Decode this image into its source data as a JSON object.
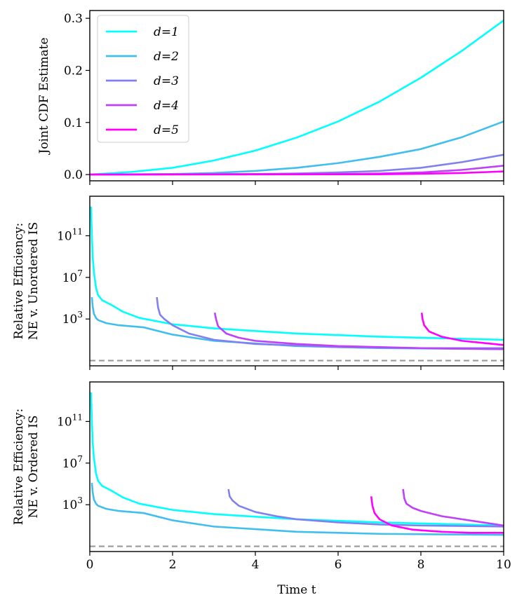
{
  "chart_data": {
    "type": "line",
    "shared_x": {
      "label": "Time t",
      "xlim": [
        0,
        10
      ],
      "ticks": [
        0,
        2,
        4,
        6,
        8,
        10
      ]
    },
    "series_colors": {
      "d=1": "#00ffff",
      "d=2": "#40bfef",
      "d=3": "#8080f0",
      "d=4": "#bf40f8",
      "d=5": "#ff00ff"
    },
    "panels": [
      {
        "id": "joint-cdf",
        "ylabel": "Joint CDF Estimate",
        "yscale": "linear",
        "ylim": [
          -0.012,
          0.315
        ],
        "yticks": [
          0.0,
          0.1,
          0.2,
          0.3
        ],
        "ytick_labels": [
          "0.0",
          "0.1",
          "0.2",
          "0.3"
        ],
        "legend": {
          "placement": "upper-left",
          "entries": [
            "d=1",
            "d=2",
            "d=3",
            "d=4",
            "d=5"
          ]
        },
        "series": [
          {
            "name": "d=1",
            "x": [
              0,
              1,
              2,
              3,
              4,
              5,
              6,
              7,
              8,
              9,
              10
            ],
            "y": [
              0,
              0.005,
              0.013,
              0.027,
              0.046,
              0.071,
              0.102,
              0.14,
              0.186,
              0.238,
              0.296
            ]
          },
          {
            "name": "d=2",
            "x": [
              0,
              2,
              3,
              4,
              5,
              6,
              7,
              8,
              9,
              10
            ],
            "y": [
              0,
              0.001,
              0.003,
              0.007,
              0.013,
              0.022,
              0.034,
              0.049,
              0.072,
              0.102
            ]
          },
          {
            "name": "d=3",
            "x": [
              0,
              4,
              5,
              6,
              7,
              8,
              9,
              10
            ],
            "y": [
              0,
              0.001,
              0.002,
              0.004,
              0.007,
              0.013,
              0.024,
              0.038
            ]
          },
          {
            "name": "d=4",
            "x": [
              0,
              6,
              7,
              8,
              9,
              10
            ],
            "y": [
              0,
              0.001,
              0.002,
              0.004,
              0.009,
              0.017
            ]
          },
          {
            "name": "d=5",
            "x": [
              0,
              7,
              8,
              9,
              10
            ],
            "y": [
              0,
              0.0005,
              0.0015,
              0.003,
              0.006
            ]
          }
        ]
      },
      {
        "id": "re-unordered",
        "ylabel_lines": [
          "Relative Efficiency:",
          "NE v. Unordered IS"
        ],
        "yscale": "log",
        "ylim_log10": [
          -1.5,
          14.8
        ],
        "yticks_log10": [
          3,
          7,
          11
        ],
        "ytick_labels": [
          "10",
          "10",
          "10"
        ],
        "ytick_exponents": [
          "3",
          "7",
          "11"
        ],
        "reference_line": {
          "style": "dashed",
          "color": "#999999",
          "log10_value": -1
        },
        "series": [
          {
            "name": "d=1",
            "x": [
              0.03,
              0.05,
              0.07,
              0.1,
              0.15,
              0.2,
              0.3,
              0.5,
              0.8,
              1.2,
              2,
              3,
              5,
              7,
              10
            ],
            "log10_y": [
              13.8,
              11,
              9,
              7.5,
              6,
              5.3,
              4.8,
              4.4,
              3.7,
              3.1,
              2.5,
              2.1,
              1.6,
              1.3,
              1.0
            ]
          },
          {
            "name": "d=2",
            "x": [
              0.05,
              0.07,
              0.1,
              0.15,
              0.2,
              0.4,
              0.7,
              1,
              1.3,
              2,
              3,
              5,
              7,
              10
            ],
            "log10_y": [
              5.1,
              4.2,
              3.5,
              3.1,
              2.9,
              2.6,
              2.4,
              2.3,
              2.2,
              1.5,
              0.9,
              0.4,
              0.2,
              0.1
            ]
          },
          {
            "name": "d=3",
            "x": [
              1.62,
              1.65,
              1.7,
              1.8,
              2,
              2.4,
              3,
              4,
              6,
              8,
              10
            ],
            "log10_y": [
              5.1,
              4.1,
              3.4,
              3.0,
              2.4,
              1.6,
              1.0,
              0.6,
              0.3,
              0.2,
              0.2
            ]
          },
          {
            "name": "d=4",
            "x": [
              3.02,
              3.05,
              3.1,
              3.3,
              3.6,
              4,
              5,
              6,
              8,
              10
            ],
            "log10_y": [
              3.6,
              3.0,
              2.3,
              1.6,
              1.2,
              0.9,
              0.6,
              0.4,
              0.2,
              0.1
            ]
          },
          {
            "name": "d=5",
            "x": [
              8.02,
              8.04,
              8.08,
              8.2,
              8.5,
              9,
              9.5,
              10
            ],
            "log10_y": [
              3.6,
              3.0,
              2.4,
              1.8,
              1.3,
              0.9,
              0.7,
              0.5
            ]
          }
        ]
      },
      {
        "id": "re-ordered",
        "ylabel_lines": [
          "Relative Efficiency:",
          "NE v. Ordered IS"
        ],
        "yscale": "log",
        "ylim_log10": [
          -1.5,
          14.8
        ],
        "yticks_log10": [
          3,
          7,
          11
        ],
        "ytick_labels": [
          "10",
          "10",
          "10"
        ],
        "ytick_exponents": [
          "3",
          "7",
          "11"
        ],
        "reference_line": {
          "style": "dashed",
          "color": "#999999",
          "log10_value": -1
        },
        "series": [
          {
            "name": "d=1",
            "x": [
              0.03,
              0.05,
              0.07,
              0.1,
              0.15,
              0.2,
              0.3,
              0.5,
              0.8,
              1.2,
              2,
              3,
              5,
              7,
              10
            ],
            "log10_y": [
              13.8,
              11,
              9,
              7.5,
              6,
              5.3,
              4.8,
              4.4,
              3.7,
              3.1,
              2.5,
              2.1,
              1.6,
              1.3,
              1.0
            ]
          },
          {
            "name": "d=2",
            "x": [
              0.05,
              0.07,
              0.1,
              0.15,
              0.2,
              0.4,
              0.7,
              1,
              1.3,
              2,
              3,
              5,
              7,
              10
            ],
            "log10_y": [
              5.1,
              4.2,
              3.5,
              3.1,
              2.9,
              2.6,
              2.4,
              2.3,
              2.2,
              1.5,
              0.9,
              0.4,
              0.2,
              0.1
            ]
          },
          {
            "name": "d=3",
            "x": [
              3.35,
              3.38,
              3.45,
              3.6,
              4,
              4.5,
              5,
              6,
              7,
              8,
              9,
              10
            ],
            "log10_y": [
              4.5,
              3.8,
              3.4,
              2.9,
              2.3,
              1.9,
              1.6,
              1.3,
              1.1,
              1.0,
              0.95,
              0.9
            ]
          },
          {
            "name": "d=4",
            "x": [
              7.57,
              7.6,
              7.65,
              7.8,
              8,
              8.5,
              9,
              9.5,
              10
            ],
            "log10_y": [
              4.5,
              3.6,
              3.1,
              2.7,
              2.4,
              1.9,
              1.6,
              1.3,
              1.0
            ]
          },
          {
            "name": "d=5",
            "x": [
              6.8,
              6.83,
              6.88,
              7,
              7.3,
              7.8,
              8.5,
              9.2,
              10
            ],
            "log10_y": [
              3.8,
              2.9,
              2.2,
              1.6,
              1.0,
              0.6,
              0.4,
              0.3,
              0.3
            ]
          }
        ]
      }
    ]
  }
}
